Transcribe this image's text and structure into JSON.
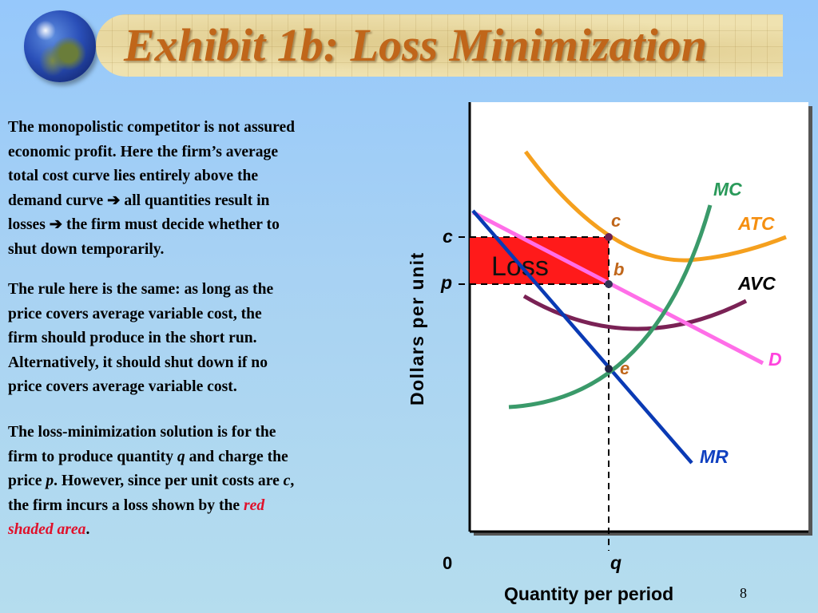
{
  "title": "Exhibit 1b: Loss Minimization",
  "slide_number": "8",
  "paragraph1": {
    "line1": "The monopolistic competitor is not assured",
    "line2": "economic profit.  Here the firm’s average",
    "line3": "total cost curve lies entirely above the",
    "line4a": "demand curve ",
    "line4b": " all quantities result in",
    "line5a": "losses ",
    "line5b": " the firm must decide whether to",
    "line6": "shut down temporarily."
  },
  "paragraph2": {
    "line1": "The rule here is the same:  as long as the",
    "line2": "price covers average variable cost, the",
    "line3": "firm should  produce in the short run.",
    "line4": "Alternatively, it should shut down if no",
    "line5": "price covers average variable cost."
  },
  "paragraph3": {
    "line1": "The loss-minimization solution is for the",
    "line2a": "firm to produce quantity ",
    "line2b": "q",
    "line2c": " and charge the",
    "line3a": "price ",
    "line3b": "p",
    "line3c": ".  However, since per unit costs are ",
    "line3d": "c",
    "line3e": ",",
    "line4": "the firm incurs a loss shown by the ",
    "line4_red": "red",
    "line5_red": "shaded area",
    "line5_end": "."
  },
  "arrow_glyph": "➔",
  "diagram": {
    "y_axis_label": "Dollars per unit",
    "x_axis_label": "Quantity per period",
    "origin_label": "0",
    "q_label": "q",
    "c_tick_label": "c",
    "p_tick_label": "p",
    "loss_label": "Loss",
    "point_c_label": "c",
    "point_b_label": "b",
    "point_e_label": "e",
    "mc_label": "MC",
    "atc_label": "ATC",
    "avc_label": "AVC",
    "d_label": "D",
    "mr_label": "MR"
  },
  "colors": {
    "title": "#c0661a",
    "atc": "#f5a01e",
    "mc": "#3a9a6a",
    "avc": "#7a2255",
    "demand": "#ff6ee8",
    "mr": "#0a3ab4",
    "loss_area": "#ff1a1a",
    "emphasis_text": "#e0102a"
  }
}
